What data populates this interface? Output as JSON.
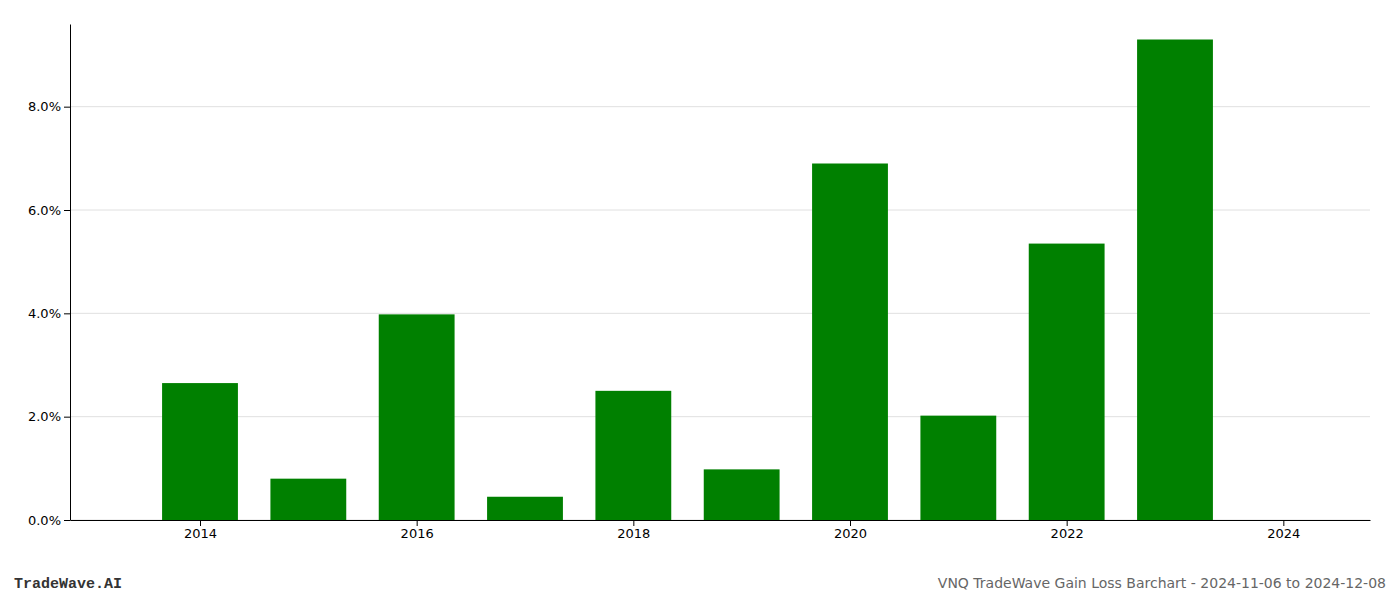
{
  "chart_data": {
    "type": "bar",
    "x": [
      2014,
      2015,
      2016,
      2017,
      2018,
      2019,
      2020,
      2021,
      2022,
      2023
    ],
    "values": [
      0.0265,
      0.008,
      0.0398,
      0.0045,
      0.025,
      0.0098,
      0.069,
      0.0202,
      0.0535,
      0.093
    ],
    "color": "#008000",
    "xlim": [
      2012.8,
      2024.8
    ],
    "xticks": [
      2014,
      2016,
      2018,
      2020,
      2022,
      2024
    ],
    "ylim": [
      0,
      0.096
    ],
    "yticks": [
      {
        "value": 0.0,
        "label": "0.0%"
      },
      {
        "value": 0.02,
        "label": "2.0%"
      },
      {
        "value": 0.04,
        "label": "4.0%"
      },
      {
        "value": 0.06,
        "label": "6.0%"
      },
      {
        "value": 0.08,
        "label": "8.0%"
      }
    ],
    "grid": true,
    "annotations": [
      "TradeWave.AI",
      "VNQ TradeWave Gain Loss Barchart - 2024-11-06 to 2024-12-08"
    ]
  }
}
